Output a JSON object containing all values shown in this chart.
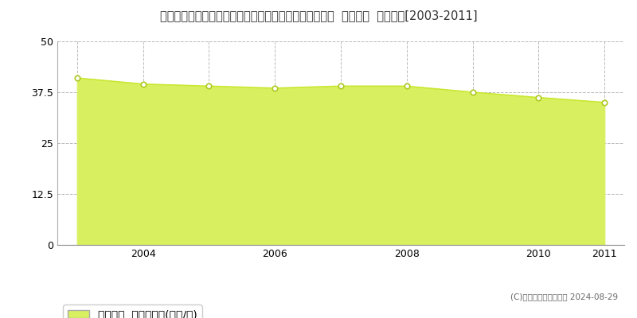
{
  "title": "埼玉県さいたま市見沼区大字大谷字稲荷１４９番１７外  基準地価  地価推移[2003-2011]",
  "years": [
    2003,
    2004,
    2005,
    2006,
    2007,
    2008,
    2009,
    2010,
    2011
  ],
  "values": [
    41.0,
    39.5,
    39.0,
    38.5,
    39.0,
    39.0,
    37.5,
    36.2,
    35.0
  ],
  "line_color": "#c8e832",
  "fill_color": "#d8f060",
  "marker_face": "#ffffff",
  "marker_edge": "#b0c820",
  "background_color": "#ffffff",
  "grid_color_h": "#bbbbbb",
  "grid_color_v": "#bbbbbb",
  "ylim": [
    0,
    50
  ],
  "yticks": [
    0,
    12.5,
    25,
    37.5,
    50
  ],
  "xtick_years": [
    2004,
    2006,
    2008,
    2010,
    2011
  ],
  "vline_years": [
    2003,
    2004,
    2005,
    2006,
    2007,
    2008,
    2009,
    2010,
    2011
  ],
  "legend_label": "基準地価  平均坪単価(万円/坪)",
  "copyright_text": "(C)土地価格ドットコム 2024-08-29",
  "title_fontsize": 10.5,
  "tick_fontsize": 9,
  "legend_fontsize": 9
}
